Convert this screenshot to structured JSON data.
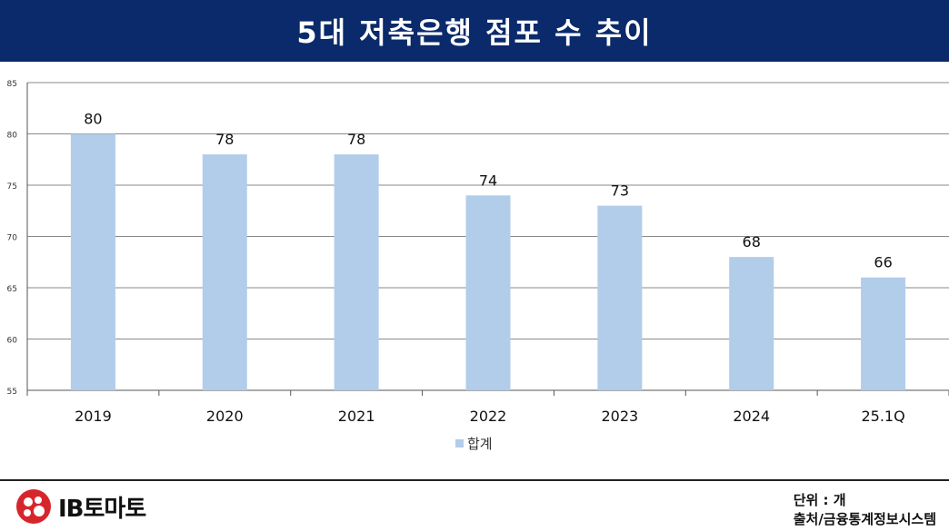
{
  "header": {
    "title": "5대 저축은행 점포 수 추이"
  },
  "chart_data": {
    "type": "bar",
    "categories": [
      "2019",
      "2020",
      "2021",
      "2022",
      "2023",
      "2024",
      "25.1Q"
    ],
    "series": [
      {
        "name": "합계",
        "values": [
          80,
          78,
          78,
          74,
          73,
          68,
          66
        ],
        "color": "#b1cdea"
      }
    ],
    "ylim": [
      55,
      85
    ],
    "yticks": [
      55,
      60,
      65,
      70,
      75,
      80,
      85
    ],
    "ytick_labels": [
      "55",
      "60",
      "65",
      "70",
      "75",
      "80",
      "85"
    ],
    "data_labels": [
      "80",
      "78",
      "78",
      "74",
      "73",
      "68",
      "66"
    ],
    "grid": true,
    "legend_position": "bottom"
  },
  "footer": {
    "logo_text": "IB토마토",
    "unit": "단위 : 개",
    "source": "출처/금융통계정보시스템"
  },
  "colors": {
    "header_bg": "#0b2a6b",
    "bar": "#b1cdea",
    "logo_red": "#d7262b"
  }
}
